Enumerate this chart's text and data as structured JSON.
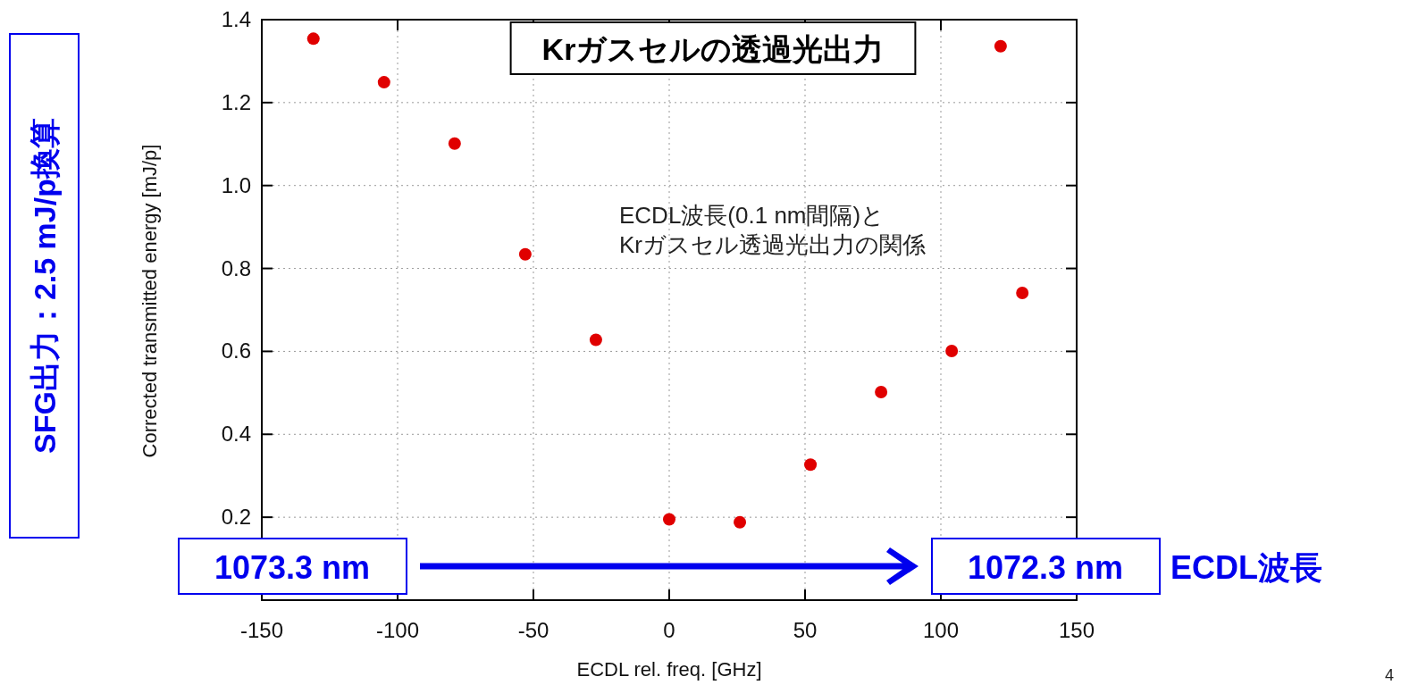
{
  "chart_data": {
    "type": "scatter",
    "title": "Krガスセルの透過光出力",
    "xlabel": "ECDL rel. freq. [GHz]",
    "ylabel": "Corrected transmitted energy [mJ/p]",
    "x": [
      -131,
      -105,
      -79,
      -53,
      -27,
      0,
      26,
      52,
      78,
      104,
      122,
      130
    ],
    "values": [
      1.354,
      1.249,
      1.101,
      0.834,
      0.628,
      0.195,
      0.188,
      0.327,
      0.502,
      0.601,
      1.336,
      0.741
    ],
    "color": "#e00000",
    "marker": "circle",
    "grid": true,
    "xlim": [
      -150,
      150
    ],
    "xticks": [
      -150,
      -100,
      -50,
      0,
      50,
      100,
      150
    ],
    "ylim": [
      0,
      1.4
    ],
    "yticks": [
      {
        "value": 0,
        "label": null
      },
      0.2,
      0.4,
      0.6,
      0.8,
      {
        "value": 1.0,
        "label": "1.0"
      },
      1.2,
      1.4
    ],
    "annotations": [
      "ECDL波長(0.1 nm間隔)と\nKrガスセル透過光出力の関係",
      "SFG出力：2.5 mJ/p換算",
      "1073.3 nm",
      "1072.3 nm",
      "ECDL波長",
      "4"
    ]
  }
}
